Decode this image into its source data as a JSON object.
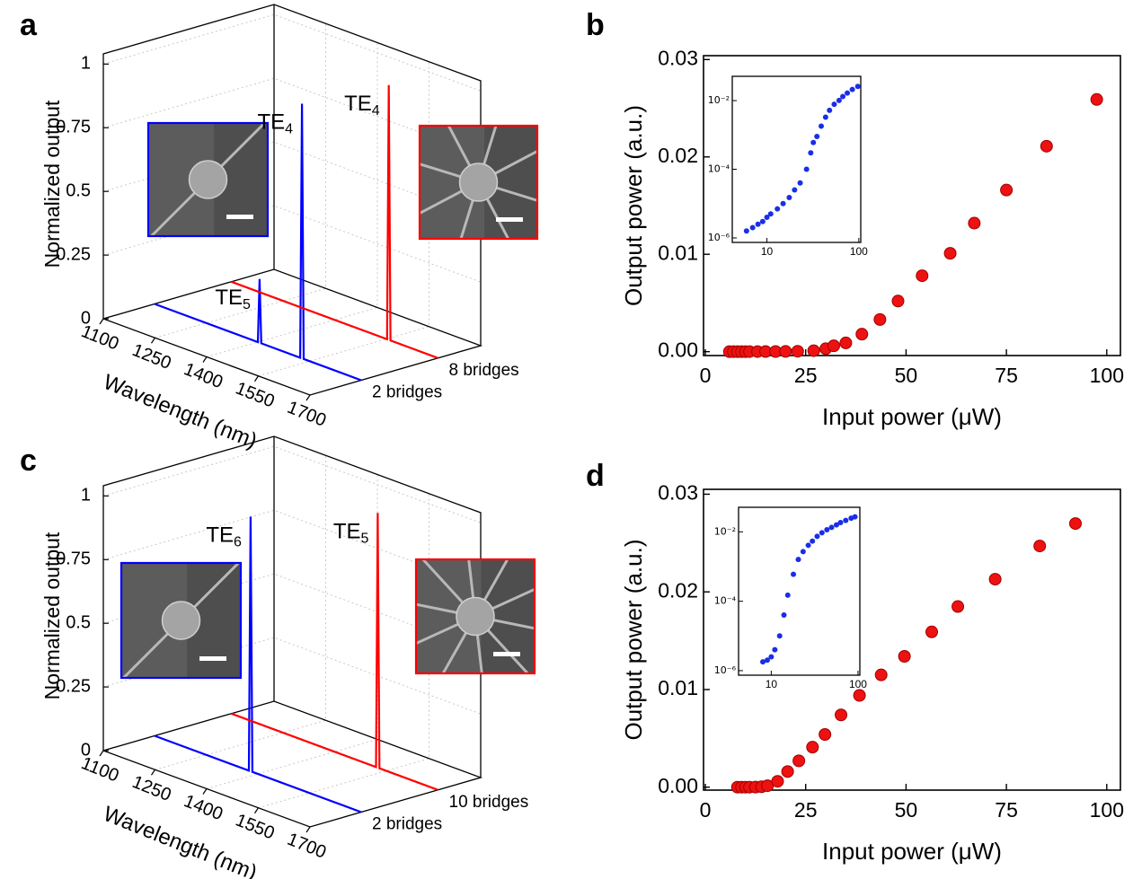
{
  "chart_data": [
    {
      "type": "waterfall",
      "panel_label": "a",
      "y_label": "Normalized  output",
      "x_label": "Wavelength (nm)",
      "xlim": [
        1100,
        1700
      ],
      "xticks": [
        1100,
        1250,
        1400,
        1550,
        1700
      ],
      "ylim": [
        0,
        1.04
      ],
      "yticks": [
        0,
        0.25,
        0.5,
        0.75,
        1
      ],
      "grid": true,
      "series": [
        {
          "name": "2 bridges",
          "color": "#0000ff",
          "x": [
            1100,
            1400,
            1405,
            1410,
            1523,
            1528,
            1533,
            1700
          ],
          "values": [
            0,
            0,
            0.25,
            0,
            0,
            1,
            0,
            0
          ],
          "peak_labels": [
            {
              "text": "TE",
              "sub": "5"
            },
            {
              "text": "TE",
              "sub": "4"
            }
          ]
        },
        {
          "name": "8 bridges",
          "color": "#ff0000",
          "x": [
            1100,
            1552,
            1557,
            1562,
            1700
          ],
          "values": [
            0,
            0,
            1,
            0,
            0
          ],
          "peak_labels": [
            {
              "text": "TE",
              "sub": "4"
            }
          ]
        }
      ]
    },
    {
      "type": "scatter",
      "panel_label": "b",
      "x_label": "Input power (μW)",
      "y_label": "Output power (a.u.)",
      "xlim": [
        -0.45,
        103.4
      ],
      "xticks": [
        0,
        25,
        50,
        75,
        100
      ],
      "ylim": [
        -0.0004,
        0.0304
      ],
      "yticks": [
        {
          "value": 0,
          "label": "0.00"
        },
        0.01,
        0.02,
        0.03
      ],
      "color": "#ee1111",
      "x": [
        6,
        7,
        8,
        9,
        10,
        11,
        13,
        15,
        17.5,
        20,
        23,
        27,
        30,
        32,
        35,
        39,
        43.5,
        48,
        54,
        61,
        67,
        75,
        85,
        97.5
      ],
      "values": [
        1.6e-06,
        2e-06,
        2.5e-06,
        3e-06,
        4e-06,
        5e-06,
        7e-06,
        1e-05,
        1.5e-05,
        2.5e-05,
        4e-05,
        0.0001,
        0.0003,
        0.0006,
        0.0009,
        0.0018,
        0.0033,
        0.0052,
        0.0078,
        0.0101,
        0.0132,
        0.0166,
        0.0211,
        0.0259
      ],
      "inset": {
        "xscale": "log",
        "yscale": "log",
        "xlim": [
          4.2,
          105
        ],
        "ylim": [
          7.4e-07,
          0.051
        ],
        "xticks": [
          10,
          100
        ],
        "yticks": [
          {
            "value": 1e-06,
            "label": "10⁻⁶"
          },
          {
            "value": 0.0001,
            "label": "10⁻⁴"
          },
          {
            "value": 0.01,
            "label": "10⁻²"
          }
        ],
        "color": "#1a2ee6"
      }
    },
    {
      "type": "waterfall",
      "panel_label": "c",
      "y_label": "Normalized  output",
      "x_label": "Wavelength (nm)",
      "xlim": [
        1100,
        1700
      ],
      "xticks": [
        1100,
        1250,
        1400,
        1550,
        1700
      ],
      "ylim": [
        0,
        1.04
      ],
      "yticks": [
        0,
        0.25,
        0.5,
        0.75,
        1
      ],
      "grid": true,
      "series": [
        {
          "name": "2 bridges",
          "color": "#0000ff",
          "x": [
            1100,
            1374,
            1379,
            1384,
            1700
          ],
          "values": [
            0,
            0,
            1,
            0,
            0
          ],
          "peak_labels": [
            {
              "text": "TE",
              "sub": "6"
            }
          ]
        },
        {
          "name": "10 bridges",
          "color": "#ff0000",
          "x": [
            1100,
            1520,
            1525,
            1530,
            1700
          ],
          "values": [
            0,
            0,
            1,
            0,
            0
          ],
          "peak_labels": [
            {
              "text": "TE",
              "sub": "5"
            }
          ]
        }
      ]
    },
    {
      "type": "scatter",
      "panel_label": "d",
      "x_label": "Input power (μW)",
      "y_label": "Output power (a.u.)",
      "xlim": [
        -0.45,
        103.4
      ],
      "xticks": [
        0,
        25,
        50,
        75,
        100
      ],
      "ylim": [
        -0.0003,
        0.0305
      ],
      "yticks": [
        {
          "value": 0,
          "label": "0.00"
        },
        0.01,
        0.02,
        0.03
      ],
      "color": "#ee1111",
      "x": [
        8,
        9,
        10,
        11,
        12.5,
        14,
        15.5,
        18,
        20.5,
        23.3,
        26.7,
        29.8,
        33.8,
        38.4,
        43.8,
        49.6,
        56.4,
        62.9,
        72.2,
        83.3,
        92.2
      ],
      "values": [
        1.8e-06,
        2e-06,
        2.5e-06,
        4e-06,
        1e-05,
        4e-05,
        0.00015,
        0.0006,
        0.0016,
        0.0027,
        0.0041,
        0.0054,
        0.0074,
        0.0094,
        0.0115,
        0.0134,
        0.0159,
        0.0185,
        0.0213,
        0.0247,
        0.027
      ],
      "inset": {
        "xscale": "log",
        "yscale": "log",
        "xlim": [
          4.2,
          105
        ],
        "ylim": [
          7.4e-07,
          0.051
        ],
        "xticks": [
          10,
          100
        ],
        "yticks": [
          {
            "value": 1e-06,
            "label": "10⁻⁶"
          },
          {
            "value": 0.0001,
            "label": "10⁻⁴"
          },
          {
            "value": 0.01,
            "label": "10⁻²"
          }
        ],
        "color": "#1a2ee6"
      }
    }
  ]
}
